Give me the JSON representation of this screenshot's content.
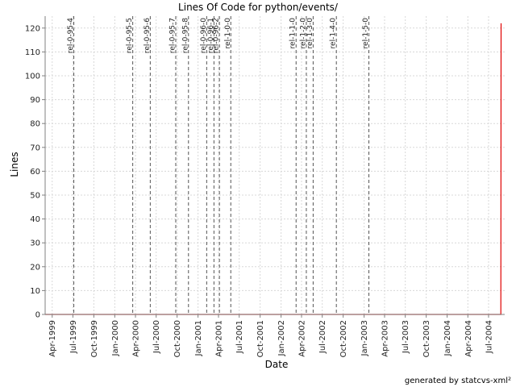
{
  "chart_data": {
    "type": "line",
    "title": "Lines Of Code for python/events/",
    "xlabel": "Date",
    "ylabel": "Lines",
    "ylim": [
      0,
      125
    ],
    "xlim": [
      "1999-03-01",
      "2004-09-10"
    ],
    "yticks": [
      0,
      10,
      20,
      30,
      40,
      50,
      60,
      70,
      80,
      90,
      100,
      110,
      120
    ],
    "xticks": [
      {
        "date": "1999-04-01",
        "label": "Apr-1999"
      },
      {
        "date": "1999-07-01",
        "label": "Jul-1999"
      },
      {
        "date": "1999-10-01",
        "label": "Oct-1999"
      },
      {
        "date": "2000-01-01",
        "label": "Jan-2000"
      },
      {
        "date": "2000-04-01",
        "label": "Apr-2000"
      },
      {
        "date": "2000-07-01",
        "label": "Jul-2000"
      },
      {
        "date": "2000-10-01",
        "label": "Oct-2000"
      },
      {
        "date": "2001-01-01",
        "label": "Jan-2001"
      },
      {
        "date": "2001-04-01",
        "label": "Apr-2001"
      },
      {
        "date": "2001-07-01",
        "label": "Jul-2001"
      },
      {
        "date": "2001-10-01",
        "label": "Oct-2001"
      },
      {
        "date": "2002-01-01",
        "label": "Jan-2002"
      },
      {
        "date": "2002-04-01",
        "label": "Apr-2002"
      },
      {
        "date": "2002-07-01",
        "label": "Jul-2002"
      },
      {
        "date": "2002-10-01",
        "label": "Oct-2002"
      },
      {
        "date": "2003-01-01",
        "label": "Jan-2003"
      },
      {
        "date": "2003-04-01",
        "label": "Apr-2003"
      },
      {
        "date": "2003-07-01",
        "label": "Jul-2003"
      },
      {
        "date": "2003-10-01",
        "label": "Oct-2003"
      },
      {
        "date": "2004-01-01",
        "label": "Jan-2004"
      },
      {
        "date": "2004-04-01",
        "label": "Apr-2004"
      },
      {
        "date": "2004-07-01",
        "label": "Jul-2004"
      }
    ],
    "grid": true,
    "series": [
      {
        "color": "#e00000",
        "points": [
          {
            "x": "1999-03-01",
            "y": 0
          },
          {
            "x": "2004-08-24",
            "y": 0
          },
          {
            "x": "2004-08-25",
            "y": 122
          }
        ]
      }
    ],
    "tags": [
      {
        "label": "rel-0-95-4",
        "date": "1999-07-05"
      },
      {
        "label": "rel-0-95-5",
        "date": "2000-03-20"
      },
      {
        "label": "rel-0-95-6",
        "date": "2000-06-05"
      },
      {
        "label": "rel-0-95-7",
        "date": "2000-09-25"
      },
      {
        "label": "rel-0-95-8",
        "date": "2000-11-20"
      },
      {
        "label": "rel-0-96-0",
        "date": "2001-02-08"
      },
      {
        "label": "rel-0-96-1",
        "date": "2001-03-12"
      },
      {
        "label": "rel-0-96-2",
        "date": "2001-04-05"
      },
      {
        "label": "rel-1-0-0",
        "date": "2001-05-25"
      },
      {
        "label": "rel-1-1-0",
        "date": "2002-03-08"
      },
      {
        "label": "rel-1-2-0",
        "date": "2002-04-22"
      },
      {
        "label": "rel-1-3-0",
        "date": "2002-05-22"
      },
      {
        "label": "rel-1-4-0",
        "date": "2002-09-01"
      },
      {
        "label": "rel-1-5-0",
        "date": "2003-01-22"
      }
    ],
    "colors": {
      "grid": "#d8d8d8",
      "tag_line": "#555555",
      "axis": "#808080"
    }
  },
  "footer": "generated by statcvs-xml²"
}
